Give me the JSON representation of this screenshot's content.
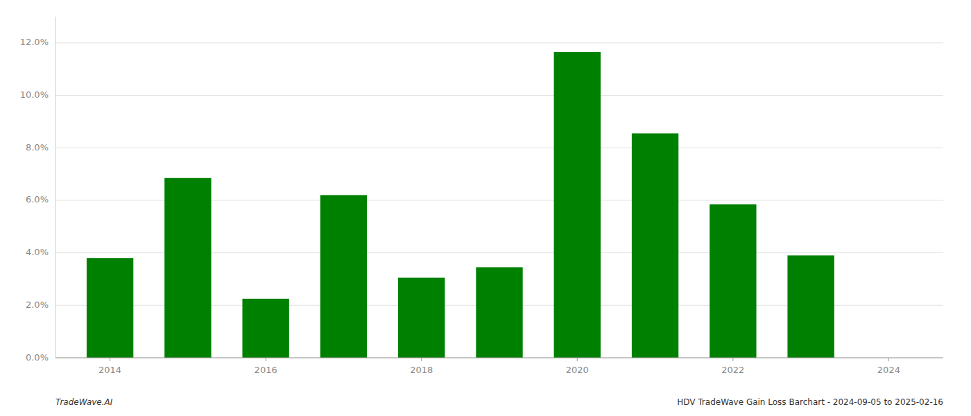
{
  "chart_data": {
    "type": "bar",
    "x": [
      2014,
      2015,
      2016,
      2017,
      2018,
      2019,
      2020,
      2021,
      2022,
      2023
    ],
    "values": [
      0.038,
      0.0685,
      0.0225,
      0.062,
      0.0305,
      0.0345,
      0.1165,
      0.0855,
      0.0585,
      0.039
    ],
    "color": "#008000",
    "xlim": [
      2013.3,
      2024.7
    ],
    "xticks": [
      2014,
      2016,
      2018,
      2020,
      2022,
      2024
    ],
    "ylim": [
      0,
      0.13
    ],
    "yticks": [
      {
        "value": 0.0,
        "label": "0.0%"
      },
      {
        "value": 0.02,
        "label": "2.0%"
      },
      {
        "value": 0.04,
        "label": "4.0%"
      },
      {
        "value": 0.06,
        "label": "6.0%"
      },
      {
        "value": 0.08,
        "label": "8.0%"
      },
      {
        "value": 0.1,
        "label": "10.0%"
      },
      {
        "value": 0.12,
        "label": "12.0%"
      }
    ],
    "grid": true,
    "annotations": [
      "TradeWave.AI",
      "HDV TradeWave Gain Loss Barchart - 2024-09-05 to 2025-02-16"
    ]
  }
}
